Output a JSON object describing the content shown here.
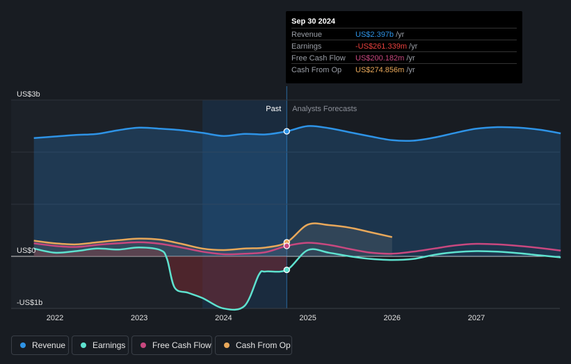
{
  "colors": {
    "revenue": "#2e93e6",
    "earnings": "#5ee2cf",
    "free_cash_flow": "#c8487f",
    "cash_from_op": "#e8a85a"
  },
  "tooltip": {
    "date": "Sep 30 2024",
    "rows": [
      {
        "label": "Revenue",
        "value": "US$2.397b",
        "unit": " /yr"
      },
      {
        "label": "Earnings",
        "value": "-US$261.339m",
        "unit": " /yr"
      },
      {
        "label": "Free Cash Flow",
        "value": "US$200.182m",
        "unit": " /yr"
      },
      {
        "label": "Cash From Op",
        "value": "US$274.856m",
        "unit": " /yr"
      }
    ]
  },
  "regions": {
    "past": "Past",
    "forecast": "Analysts Forecasts"
  },
  "legend": [
    {
      "label": "Revenue"
    },
    {
      "label": "Earnings"
    },
    {
      "label": "Free Cash Flow"
    },
    {
      "label": "Cash From Op"
    }
  ],
  "chart_data": {
    "type": "line",
    "y_tick_labels": [
      "US$3b",
      "US$0",
      "-US$1b"
    ],
    "x_tick_labels": [
      "2022",
      "2023",
      "2024",
      "2025",
      "2026",
      "2027"
    ],
    "ylim": [
      -1.0,
      3.0
    ],
    "xlim": [
      2021.5,
      2028.0
    ],
    "divider_date": 2024.75,
    "highlight_range": [
      2023.75,
      2024.75
    ],
    "grid": true,
    "series": [
      {
        "name": "Revenue",
        "key": "revenue",
        "x": [
          2021.75,
          2022.0,
          2022.25,
          2022.5,
          2022.75,
          2023.0,
          2023.25,
          2023.5,
          2023.75,
          2024.0,
          2024.25,
          2024.5,
          2024.75,
          2025.0,
          2025.25,
          2025.5,
          2025.75,
          2026.0,
          2026.25,
          2026.5,
          2026.75,
          2027.0,
          2027.25,
          2027.5,
          2027.75,
          2028.0
        ],
        "y": [
          2.27,
          2.3,
          2.33,
          2.35,
          2.42,
          2.47,
          2.45,
          2.42,
          2.37,
          2.31,
          2.35,
          2.34,
          2.4,
          2.5,
          2.46,
          2.38,
          2.3,
          2.23,
          2.22,
          2.28,
          2.37,
          2.45,
          2.48,
          2.47,
          2.43,
          2.36
        ]
      },
      {
        "name": "Earnings",
        "key": "earnings",
        "x": [
          2021.75,
          2022.0,
          2022.25,
          2022.5,
          2022.75,
          2023.0,
          2023.25,
          2023.33,
          2023.42,
          2023.58,
          2023.75,
          2024.0,
          2024.25,
          2024.42,
          2024.5,
          2024.75,
          2025.0,
          2025.25,
          2025.5,
          2025.75,
          2026.0,
          2026.25,
          2026.5,
          2026.75,
          2027.0,
          2027.25,
          2027.5,
          2027.75,
          2028.0
        ],
        "y": [
          0.15,
          0.07,
          0.1,
          0.15,
          0.13,
          0.17,
          0.12,
          -0.05,
          -0.6,
          -0.7,
          -0.8,
          -1.0,
          -0.95,
          -0.35,
          -0.29,
          -0.26,
          0.12,
          0.07,
          0.0,
          -0.05,
          -0.07,
          -0.05,
          0.03,
          0.08,
          0.1,
          0.09,
          0.06,
          0.02,
          -0.02
        ]
      },
      {
        "name": "Free Cash Flow",
        "key": "free_cash_flow",
        "x": [
          2021.75,
          2022.0,
          2022.25,
          2022.5,
          2022.75,
          2023.0,
          2023.25,
          2023.5,
          2023.75,
          2024.0,
          2024.25,
          2024.5,
          2024.75,
          2025.0,
          2025.25,
          2025.5,
          2025.75,
          2026.0,
          2026.25,
          2026.5,
          2026.75,
          2027.0,
          2027.25,
          2027.5,
          2027.75,
          2028.0
        ],
        "y": [
          0.25,
          0.2,
          0.18,
          0.22,
          0.25,
          0.27,
          0.24,
          0.17,
          0.09,
          0.04,
          0.05,
          0.08,
          0.2,
          0.26,
          0.22,
          0.14,
          0.07,
          0.05,
          0.09,
          0.15,
          0.21,
          0.24,
          0.23,
          0.2,
          0.16,
          0.11
        ]
      },
      {
        "name": "Cash From Op",
        "key": "cash_from_op",
        "x": [
          2021.75,
          2022.0,
          2022.25,
          2022.5,
          2022.75,
          2023.0,
          2023.25,
          2023.5,
          2023.75,
          2024.0,
          2024.25,
          2024.5,
          2024.75,
          2025.0,
          2025.25,
          2025.5,
          2025.75,
          2026.0
        ],
        "y": [
          0.3,
          0.25,
          0.23,
          0.27,
          0.31,
          0.34,
          0.32,
          0.24,
          0.15,
          0.12,
          0.15,
          0.17,
          0.27,
          0.61,
          0.6,
          0.55,
          0.46,
          0.37
        ]
      }
    ]
  }
}
